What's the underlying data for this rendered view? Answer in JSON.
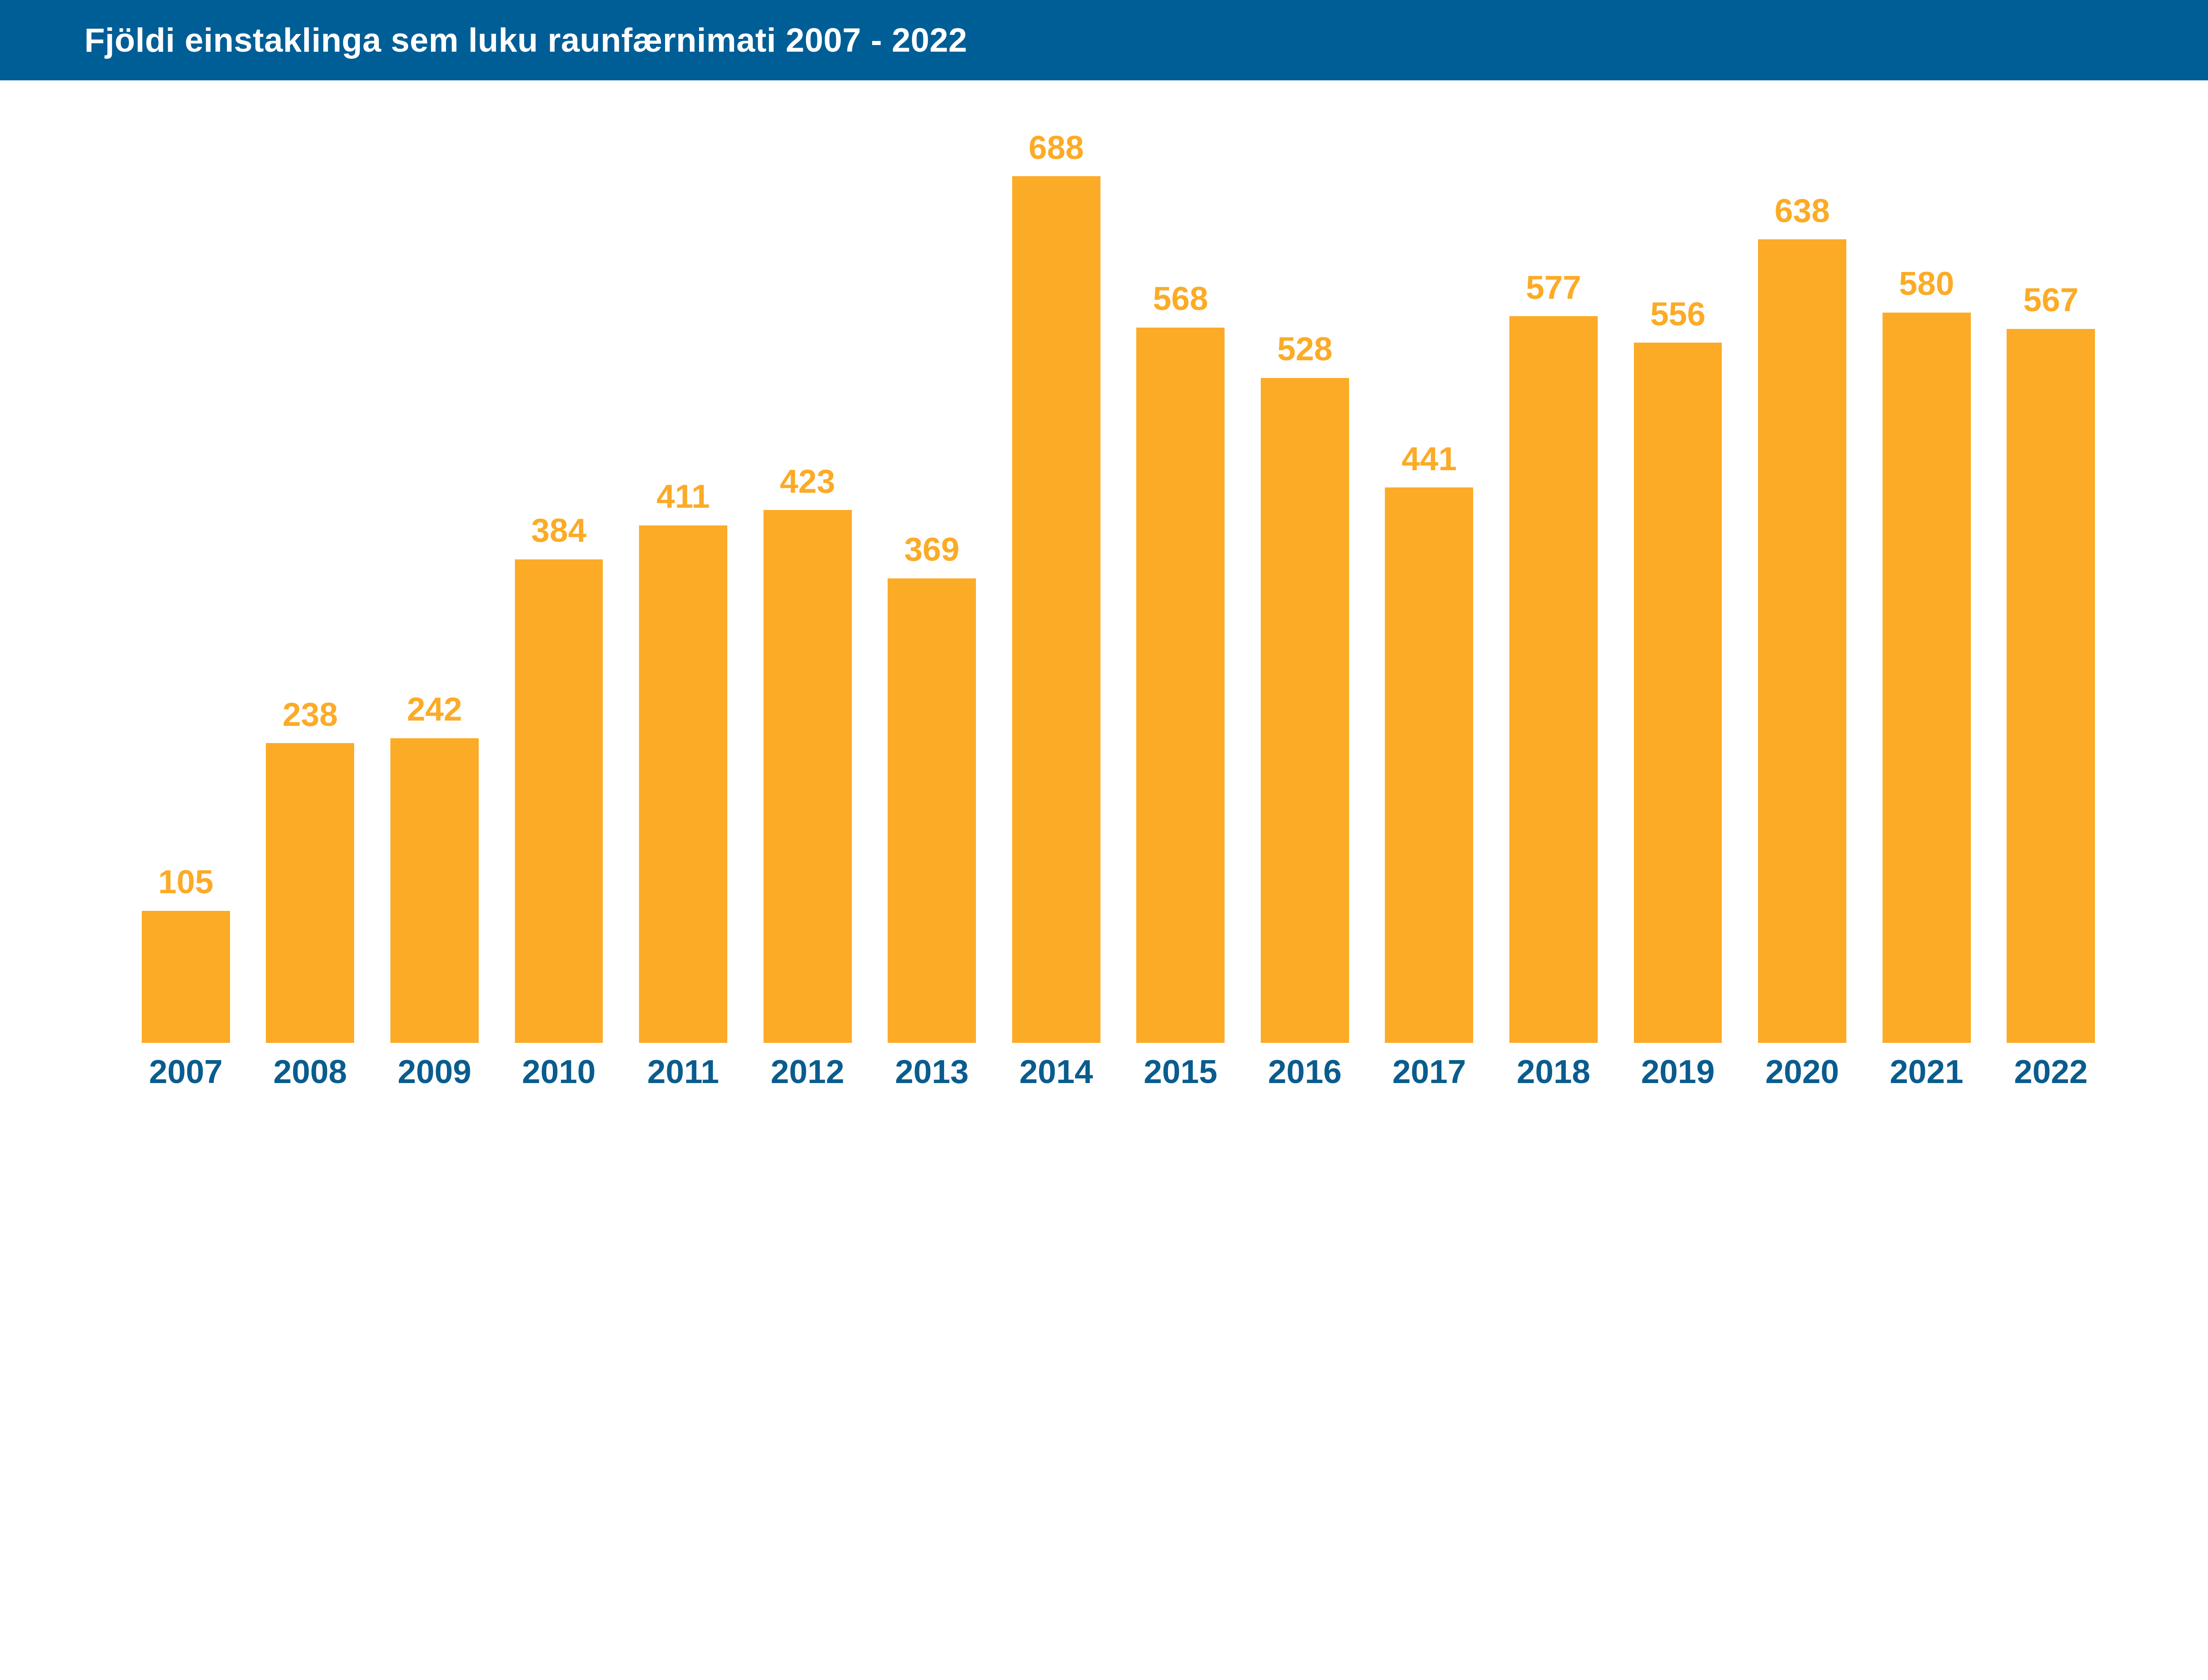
{
  "header": {
    "title": "Fjöldi einstaklinga sem luku raunfærnimati 2007 - 2022",
    "background": "#005E96",
    "text_color": "#FFFFFF"
  },
  "chart_data": {
    "type": "bar",
    "title": "Fjöldi einstaklinga sem luku raunfærnimati 2007 - 2022",
    "categories": [
      "2007",
      "2008",
      "2009",
      "2010",
      "2011",
      "2012",
      "2013",
      "2014",
      "2015",
      "2016",
      "2017",
      "2018",
      "2019",
      "2020",
      "2021",
      "2022"
    ],
    "values": [
      105,
      238,
      242,
      384,
      411,
      423,
      369,
      688,
      568,
      528,
      441,
      577,
      556,
      638,
      580,
      567
    ],
    "xlabel": "",
    "ylabel": "",
    "ylim": [
      0,
      688
    ],
    "grid": false,
    "legend": false,
    "value_labels_position": "above-bars",
    "bar_color": "#FCAB27",
    "value_label_color": "#FCAB27",
    "category_label_color": "#0A5C8E",
    "background": "#FFFFFF"
  }
}
